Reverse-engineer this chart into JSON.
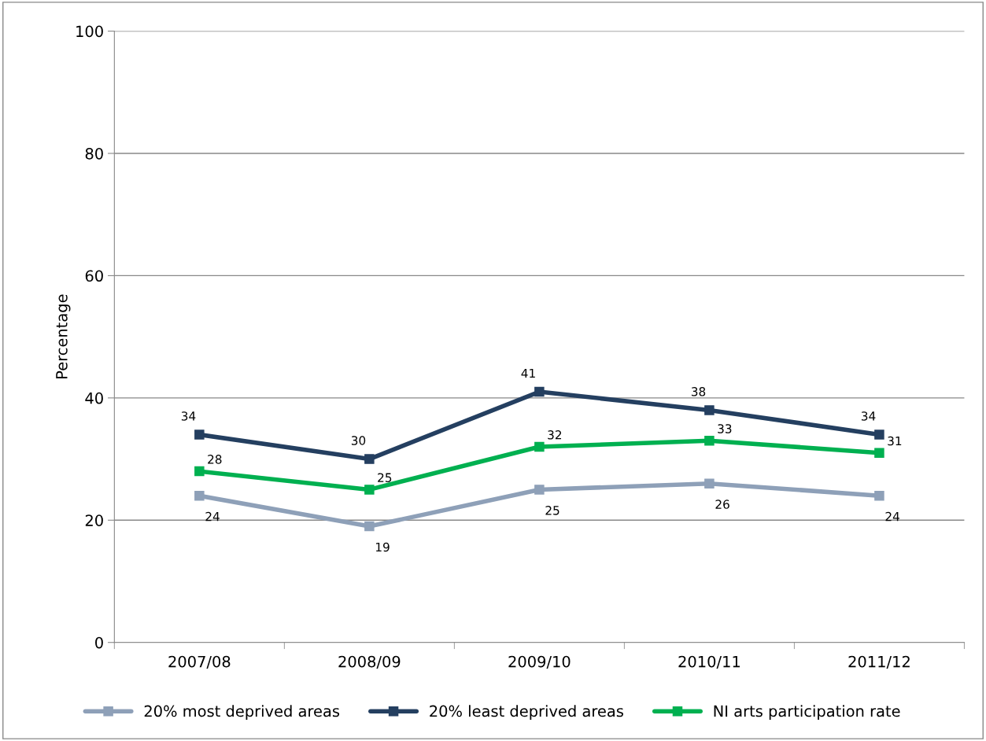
{
  "chart_data": {
    "type": "line",
    "ylabel": "Percentage",
    "categories": [
      "2007/08",
      "2008/09",
      "2009/10",
      "2010/11",
      "2011/12"
    ],
    "series": [
      {
        "name": "20% most deprived areas",
        "color": "#8ea0b8",
        "values": [
          24,
          19,
          25,
          26,
          24
        ]
      },
      {
        "name": "20% least deprived areas",
        "color": "#243f60",
        "values": [
          34,
          30,
          41,
          38,
          34
        ]
      },
      {
        "name": "NI arts participation rate",
        "color": "#00b050",
        "values": [
          28,
          25,
          32,
          33,
          31
        ]
      }
    ],
    "ylim": [
      0,
      100
    ],
    "yticks": [
      0,
      20,
      40,
      60,
      80,
      100
    ],
    "grid": "y",
    "legend": "bottom",
    "marker": "square",
    "line_style": "solid",
    "data_labels": true
  }
}
